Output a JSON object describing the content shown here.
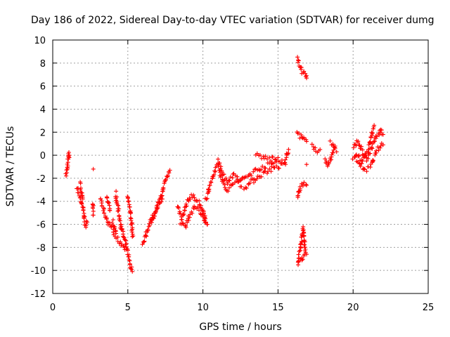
{
  "chart_data": {
    "type": "scatter",
    "title": "Day 186 of 2022, Sidereal Day-to-day VTEC variation (SDTVAR) for receiver dumg",
    "xlabel": "GPS time / hours",
    "ylabel": "SDTVAR / TECUs",
    "xlim": [
      0,
      25
    ],
    "ylim": [
      -12,
      10
    ],
    "xticks": [
      0,
      5,
      10,
      15,
      20,
      25
    ],
    "yticks": [
      -12,
      -10,
      -8,
      -6,
      -4,
      -2,
      0,
      2,
      4,
      6,
      8,
      10
    ],
    "grid": true,
    "marker": "plus",
    "color": "#ff0000",
    "series": [
      {
        "name": "SDTVAR",
        "segments": [
          {
            "x": [
              0.9,
              1.0,
              1.05,
              1.1
            ],
            "y": [
              -1.8,
              -0.6,
              0.2,
              -0.2
            ]
          },
          {
            "x": [
              1.6,
              1.8,
              2.0,
              2.1,
              2.2,
              2.3
            ],
            "y": [
              -2.8,
              -3.5,
              -4.5,
              -5.5,
              -6.1,
              -5.8
            ]
          },
          {
            "x": [
              1.8,
              1.9,
              2.0
            ],
            "y": [
              -2.5,
              -3.0,
              -3.8
            ]
          },
          {
            "x": [
              2.7
            ],
            "y": [
              -1.2
            ]
          },
          {
            "x": [
              2.7,
              2.7
            ],
            "y": [
              -4.3,
              -5.2
            ]
          },
          {
            "x": [
              3.2,
              3.4,
              3.6,
              3.8,
              4.0,
              4.2
            ],
            "y": [
              -3.8,
              -5.0,
              -5.6,
              -6.2,
              -5.8,
              -6.6
            ]
          },
          {
            "x": [
              3.6,
              3.7,
              3.8
            ],
            "y": [
              -3.5,
              -4.2,
              -4.8
            ]
          },
          {
            "x": [
              4.2,
              4.4,
              4.6,
              4.8,
              5.0,
              5.15,
              5.3
            ],
            "y": [
              -3.3,
              -5.0,
              -6.5,
              -7.5,
              -8.5,
              -9.6,
              -10.1
            ]
          },
          {
            "x": [
              4.0,
              4.3,
              4.6,
              4.8
            ],
            "y": [
              -6.5,
              -7.2,
              -7.8,
              -8.2
            ]
          },
          {
            "x": [
              5.0,
              5.2,
              5.35
            ],
            "y": [
              -3.5,
              -5.5,
              -7.0
            ]
          },
          {
            "x": [
              6.0,
              6.3,
              6.6,
              6.9,
              7.2,
              7.5,
              7.8
            ],
            "y": [
              -7.8,
              -6.5,
              -5.5,
              -4.8,
              -3.6,
              -2.2,
              -1.3
            ]
          },
          {
            "x": [
              6.5,
              6.8,
              7.0,
              7.3
            ],
            "y": [
              -5.8,
              -5.0,
              -4.3,
              -3.8
            ]
          },
          {
            "x": [
              8.3,
              8.6,
              8.9,
              9.2,
              9.5,
              9.8,
              10.1,
              10.3
            ],
            "y": [
              -4.5,
              -5.5,
              -4.2,
              -3.5,
              -3.8,
              -4.2,
              -5.3,
              -6.0
            ]
          },
          {
            "x": [
              8.5,
              8.8,
              9.1,
              9.5,
              9.9,
              10.2
            ],
            "y": [
              -5.8,
              -6.2,
              -5.2,
              -4.5,
              -5.0,
              -5.8
            ]
          },
          {
            "x": [
              10.2,
              10.5,
              10.8,
              11.0,
              11.3,
              11.6,
              12.0
            ],
            "y": [
              -3.8,
              -2.5,
              -1.4,
              -0.9,
              -2.3,
              -3.0,
              -2.5
            ]
          },
          {
            "x": [
              11.0,
              11.3,
              11.6,
              12.0,
              12.5
            ],
            "y": [
              -0.4,
              -1.5,
              -2.3,
              -1.7,
              -2.2
            ]
          },
          {
            "x": [
              12.0,
              12.5,
              13.0,
              13.5,
              14.0,
              14.5,
              15.0,
              15.5,
              15.7
            ],
            "y": [
              -2.5,
              -2.2,
              -1.8,
              -1.3,
              -1.0,
              -0.8,
              -0.5,
              -0.5,
              0.5
            ]
          },
          {
            "x": [
              12.5,
              13.0,
              13.5,
              14.0,
              14.5,
              15.0,
              15.5
            ],
            "y": [
              -2.8,
              -2.6,
              -2.0,
              -1.6,
              -1.2,
              -1.0,
              -0.8
            ]
          },
          {
            "x": [
              13.5,
              14.0,
              14.5,
              15.0
            ],
            "y": [
              0.1,
              -0.2,
              -0.3,
              -0.2
            ]
          },
          {
            "x": [
              16.3,
              16.4,
              16.5,
              16.6,
              16.8,
              16.9
            ],
            "y": [
              8.3,
              8.0,
              7.6,
              7.3,
              7.0,
              6.7
            ]
          },
          {
            "x": [
              16.3,
              16.5,
              16.7,
              16.9
            ],
            "y": [
              2.0,
              1.6,
              1.4,
              1.2
            ]
          },
          {
            "x": [
              16.9
            ],
            "y": [
              -0.8
            ]
          },
          {
            "x": [
              16.3,
              16.5,
              16.7,
              16.9
            ],
            "y": [
              -3.8,
              -2.6,
              -2.5,
              -2.6
            ]
          },
          {
            "x": [
              16.3,
              16.4,
              16.5,
              16.6,
              16.7,
              16.8
            ],
            "y": [
              -9.5,
              -8.5,
              -8.0,
              -7.0,
              -6.4,
              -8.3
            ]
          },
          {
            "x": [
              16.5,
              16.7,
              16.9
            ],
            "y": [
              -9.2,
              -8.8,
              -8.6
            ]
          },
          {
            "x": [
              17.3,
              17.5,
              17.8
            ],
            "y": [
              0.8,
              0.3,
              0.5
            ]
          },
          {
            "x": [
              18.1,
              18.3,
              18.5,
              18.7,
              18.9
            ],
            "y": [
              -0.4,
              -0.9,
              -0.3,
              0.6,
              0.3
            ]
          },
          {
            "x": [
              18.5,
              18.8
            ],
            "y": [
              1.1,
              0.8
            ]
          },
          {
            "x": [
              20.0,
              20.3,
              20.6,
              20.9,
              21.2,
              21.5,
              21.8,
              22.0
            ],
            "y": [
              0.7,
              1.2,
              0.3,
              -0.3,
              0.5,
              1.5,
              2.2,
              1.8
            ]
          },
          {
            "x": [
              20.0,
              20.4,
              20.8,
              21.2,
              21.6,
              22.0
            ],
            "y": [
              -0.2,
              -0.6,
              -1.4,
              -0.9,
              0.5,
              0.9
            ]
          },
          {
            "x": [
              20.2,
              20.6,
              21.0,
              21.4
            ],
            "y": [
              0.2,
              -0.5,
              0.4,
              2.6
            ]
          }
        ]
      }
    ]
  }
}
